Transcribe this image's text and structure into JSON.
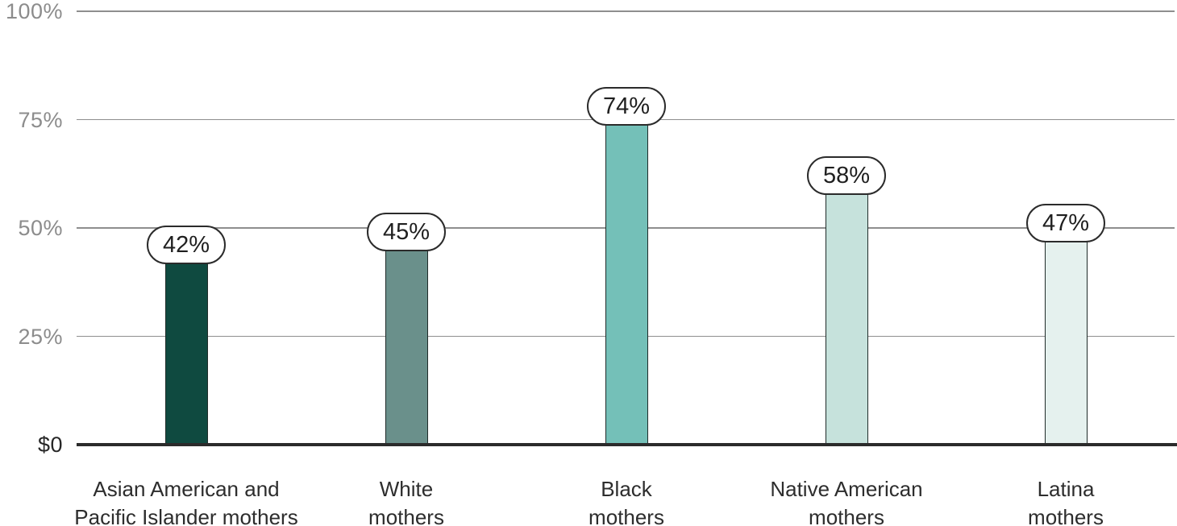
{
  "chart_data": {
    "type": "bar",
    "title": "",
    "xlabel": "",
    "ylabel": "",
    "categories": [
      "Asian American and Pacific Islander mothers",
      "White mothers",
      "Black mothers",
      "Native American mothers",
      "Latina mothers"
    ],
    "category_label_lines": [
      [
        "Asian American and",
        "Pacific Islander mothers"
      ],
      [
        "White",
        "mothers"
      ],
      [
        "Black",
        "mothers"
      ],
      [
        "Native American",
        "mothers"
      ],
      [
        "Latina",
        "mothers"
      ]
    ],
    "values": [
      42,
      45,
      74,
      58,
      47
    ],
    "value_labels": [
      "42%",
      "45%",
      "74%",
      "58%",
      "47%"
    ],
    "bar_colors": [
      "#0f4a40",
      "#6a908b",
      "#74c0b8",
      "#c6e2dc",
      "#e5f1ee"
    ],
    "yticks": [
      {
        "label": "100%",
        "value": 100
      },
      {
        "label": "75%",
        "value": 75
      },
      {
        "label": "50%",
        "value": 50
      },
      {
        "label": "25%",
        "value": 25
      },
      {
        "label": "$0",
        "value": 0
      }
    ],
    "ylim": [
      0,
      100
    ],
    "grid": "horizontal",
    "legend": null
  },
  "colors": {
    "background": "#ffffff",
    "gridline": "#8e8e8e",
    "axis_tick_text": "#8c8c8c",
    "zero_tick_text": "#272727",
    "baseline": "#2b2b2b",
    "bar_border": "#1f2b29",
    "pill_background": "#ffffff",
    "pill_border": "#2b2b2b",
    "pill_text": "#1f1f1f",
    "category_text": "#2d2d2d"
  }
}
